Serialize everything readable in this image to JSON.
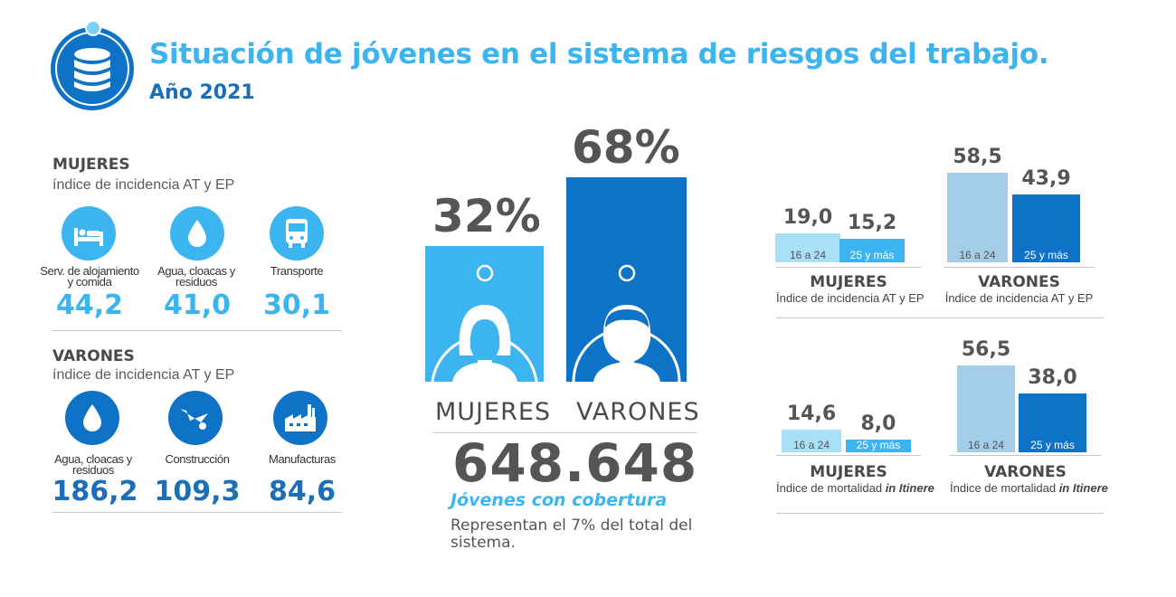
{
  "header": {
    "title": "Situación de  jóvenes en el sistema de riesgos del trabajo.",
    "year": "Año 2021",
    "logo_icon": "database-icon"
  },
  "colors": {
    "light_blue": "#3cb4f0",
    "dark_blue": "#0e73c6",
    "pale_blue": "#a8d8f0",
    "grey_text": "#555555"
  },
  "left": {
    "mujeres": {
      "title": "MUJERES",
      "subtitle": "índice de incidencia AT y EP",
      "items": [
        {
          "label": "Serv. de alojamiento y comida",
          "value": "44,2",
          "icon": "bed-icon"
        },
        {
          "label": "Agua, cloacas y residuos",
          "value": "41,0",
          "icon": "water-drop-icon"
        },
        {
          "label": "Transporte",
          "value": "30,1",
          "icon": "bus-icon"
        }
      ]
    },
    "varones": {
      "title": "VARONES",
      "subtitle": "índice de incidencia AT y EP",
      "items": [
        {
          "label": "Agua, cloacas y residuos",
          "value": "186,2",
          "icon": "water-drop-icon"
        },
        {
          "label": "Construcción",
          "value": "109,3",
          "icon": "wheelbarrow-icon"
        },
        {
          "label": "Manufacturas",
          "value": "84,6",
          "icon": "factory-icon"
        }
      ]
    }
  },
  "center": {
    "mujeres_pct": "32%",
    "varones_pct": "68%",
    "mujeres_label": "MUJERES",
    "varones_label": "VARONES",
    "total": "648.648",
    "coverage": "Jóvenes con cobertura",
    "represent": "Representan el 7% del total del sistema."
  },
  "chart_data": [
    {
      "type": "bar",
      "title": "MUJERES",
      "subtitle": "Índice de incidencia AT y EP",
      "categories": [
        "16 a 24",
        "25 y más"
      ],
      "values": [
        19.0,
        15.2
      ],
      "labels": [
        "19,0",
        "15,2"
      ]
    },
    {
      "type": "bar",
      "title": "VARONES",
      "subtitle": "Índice de incidencia AT y EP",
      "categories": [
        "16 a 24",
        "25 y más"
      ],
      "values": [
        58.5,
        43.9
      ],
      "labels": [
        "58,5",
        "43,9"
      ]
    },
    {
      "type": "bar",
      "title": "MUJERES",
      "subtitle": "Índice de mortalidad",
      "subtitle_italic": "in Itinere",
      "categories": [
        "16 a 24",
        "25 y más"
      ],
      "values": [
        14.6,
        8.0
      ],
      "labels": [
        "14,6",
        "8,0"
      ]
    },
    {
      "type": "bar",
      "title": "VARONES",
      "subtitle": "Índice de mortalidad",
      "subtitle_italic": "in Itinere",
      "categories": [
        "16 a 24",
        "25 y más"
      ],
      "values": [
        56.5,
        38.0
      ],
      "labels": [
        "56,5",
        "38,0"
      ]
    }
  ]
}
